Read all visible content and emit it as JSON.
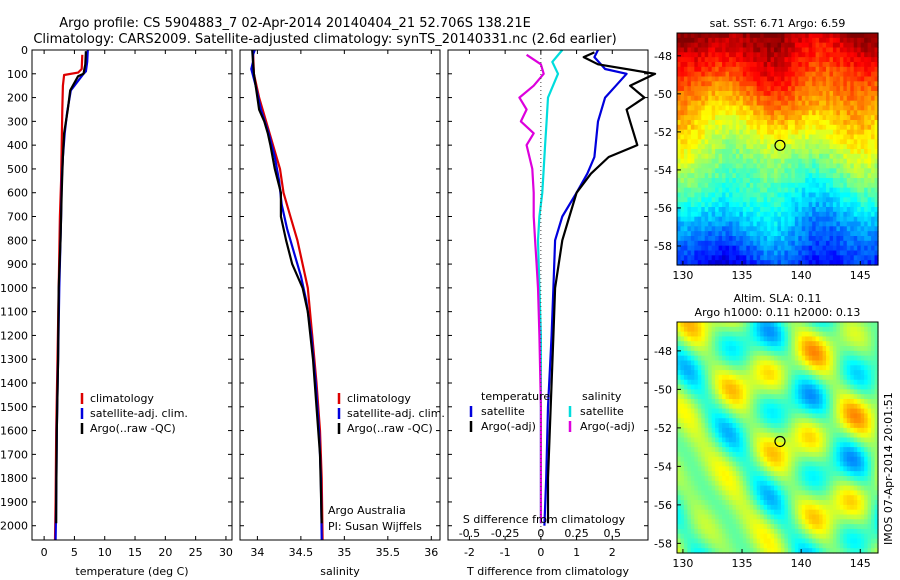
{
  "figure": {
    "title_line1": "Argo profile: CS 5904883_7 02-Apr-2014 20140404_21 52.706S 138.21E",
    "title_line2": "Climatology: CARS2009. Satellite-adjusted climatology: synTS_20140331.nc (2.6d earlier)",
    "watermark": "IMOS 07-Apr-2014 20:01:51",
    "credit_line1": "Argo Australia",
    "credit_line2": "PI: Susan Wijffels"
  },
  "chart_data": [
    {
      "type": "line",
      "id": "temperature",
      "xlabel": "temperature (deg C)",
      "xlim": [
        -2,
        31
      ],
      "xticks": [
        0,
        5,
        10,
        15,
        20,
        25,
        30
      ],
      "ylim": [
        2060,
        0
      ],
      "yticks": [
        0,
        100,
        200,
        300,
        400,
        500,
        600,
        700,
        800,
        900,
        1000,
        1100,
        1200,
        1300,
        1400,
        1500,
        1600,
        1700,
        1800,
        1900,
        2000
      ],
      "legend": {
        "position": "lower-center",
        "entries": [
          "climatology",
          "satellite-adj. clim.",
          "Argo(..raw -QC)"
        ]
      },
      "series": [
        {
          "name": "climatology",
          "color": "#dd0000",
          "points": [
            [
              6.3,
              20
            ],
            [
              6.2,
              80
            ],
            [
              5.6,
              95
            ],
            [
              3.3,
              105
            ],
            [
              3.1,
              150
            ],
            [
              3.0,
              250
            ],
            [
              2.9,
              400
            ],
            [
              2.8,
              550
            ],
            [
              2.6,
              700
            ],
            [
              2.4,
              1000
            ],
            [
              2.2,
              1300
            ],
            [
              2.0,
              1600
            ],
            [
              1.9,
              1900
            ],
            [
              1.8,
              2060
            ]
          ]
        },
        {
          "name": "satellite-adj. clim.",
          "color": "#0000dd",
          "points": [
            [
              7.2,
              0
            ],
            [
              7.1,
              50
            ],
            [
              6.9,
              90
            ],
            [
              6.5,
              100
            ],
            [
              4.4,
              170
            ],
            [
              3.8,
              260
            ],
            [
              3.4,
              350
            ],
            [
              3.1,
              450
            ],
            [
              2.9,
              550
            ],
            [
              2.8,
              700
            ],
            [
              2.5,
              1000
            ],
            [
              2.3,
              1300
            ],
            [
              2.1,
              1600
            ],
            [
              2.0,
              1900
            ],
            [
              1.9,
              2060
            ]
          ]
        },
        {
          "name": "Argo(..raw -QC)",
          "color": "#000000",
          "points": [
            [
              6.9,
              5
            ],
            [
              6.8,
              60
            ],
            [
              6.5,
              100
            ],
            [
              5.6,
              110
            ],
            [
              4.3,
              170
            ],
            [
              3.9,
              250
            ],
            [
              3.3,
              350
            ],
            [
              3.1,
              450
            ],
            [
              3.0,
              520
            ],
            [
              2.9,
              600
            ],
            [
              2.7,
              800
            ],
            [
              2.4,
              1000
            ],
            [
              2.3,
              1300
            ],
            [
              2.1,
              1600
            ],
            [
              2.0,
              1900
            ],
            [
              2.0,
              1990
            ]
          ]
        }
      ]
    },
    {
      "type": "line",
      "id": "salinity",
      "xlabel": "salinity",
      "xlim": [
        33.8,
        36.1
      ],
      "xticks": [
        34,
        34.5,
        35,
        35.5,
        36
      ],
      "ylim": [
        2060,
        0
      ],
      "legend": {
        "position": "lower-center",
        "entries": [
          "climatology",
          "satellite-adj. clim.",
          "Argo(..raw -QC)"
        ]
      },
      "series": [
        {
          "name": "climatology",
          "color": "#dd0000",
          "points": [
            [
              33.95,
              0
            ],
            [
              33.96,
              100
            ],
            [
              34.02,
              200
            ],
            [
              34.1,
              300
            ],
            [
              34.18,
              400
            ],
            [
              34.26,
              500
            ],
            [
              34.3,
              600
            ],
            [
              34.38,
              700
            ],
            [
              34.46,
              800
            ],
            [
              34.52,
              900
            ],
            [
              34.58,
              1000
            ],
            [
              34.63,
              1200
            ],
            [
              34.68,
              1400
            ],
            [
              34.72,
              1600
            ],
            [
              34.74,
              1800
            ],
            [
              34.75,
              2060
            ]
          ]
        },
        {
          "name": "satellite-adj. clim.",
          "color": "#0000dd",
          "points": [
            [
              33.97,
              0
            ],
            [
              33.95,
              20
            ],
            [
              33.95,
              50
            ],
            [
              33.93,
              80
            ],
            [
              33.98,
              150
            ],
            [
              34.04,
              250
            ],
            [
              34.13,
              350
            ],
            [
              34.2,
              450
            ],
            [
              34.25,
              550
            ],
            [
              34.28,
              650
            ],
            [
              34.34,
              750
            ],
            [
              34.42,
              850
            ],
            [
              34.5,
              950
            ],
            [
              34.56,
              1050
            ],
            [
              34.62,
              1200
            ],
            [
              34.67,
              1400
            ],
            [
              34.71,
              1600
            ],
            [
              34.73,
              1800
            ],
            [
              34.74,
              2060
            ]
          ]
        },
        {
          "name": "Argo(..raw -QC)",
          "color": "#000000",
          "points": [
            [
              33.94,
              0
            ],
            [
              33.96,
              100
            ],
            [
              34.0,
              200
            ],
            [
              34.02,
              250
            ],
            [
              34.08,
              300
            ],
            [
              34.12,
              350
            ],
            [
              34.15,
              400
            ],
            [
              34.2,
              500
            ],
            [
              34.27,
              600
            ],
            [
              34.27,
              700
            ],
            [
              34.33,
              800
            ],
            [
              34.4,
              900
            ],
            [
              34.52,
              1000
            ],
            [
              34.58,
              1100
            ],
            [
              34.64,
              1300
            ],
            [
              34.68,
              1500
            ],
            [
              34.72,
              1700
            ],
            [
              34.74,
              1990
            ]
          ]
        }
      ]
    },
    {
      "type": "line",
      "id": "difference",
      "xlabel": "T difference from climatology",
      "xlabel_top": "S difference from climatology",
      "xlim": [
        -2.6,
        3.0
      ],
      "xticks": [
        -2,
        -1,
        0,
        1,
        2
      ],
      "xticks_top": [
        -0.5,
        -0.25,
        0,
        0.25,
        0.5
      ],
      "xticks_top_labels": [
        "-0.5",
        "-0.25",
        "0",
        "0.25",
        "0.5"
      ],
      "ylim": [
        2060,
        0
      ],
      "legend": {
        "position": "lower-center",
        "groups": [
          {
            "title": "temperature",
            "entries": [
              "satellite",
              "Argo(-adj)"
            ]
          },
          {
            "title": "salinity",
            "entries": [
              "satellite",
              "Argo(-adj)"
            ]
          }
        ]
      },
      "series": [
        {
          "name": "temperature satellite",
          "color": "#0000dd",
          "points": [
            [
              1.6,
              0
            ],
            [
              1.5,
              30
            ],
            [
              1.8,
              80
            ],
            [
              2.4,
              100
            ],
            [
              2.1,
              150
            ],
            [
              1.8,
              200
            ],
            [
              1.6,
              300
            ],
            [
              1.5,
              450
            ],
            [
              1.3,
              520
            ],
            [
              1.0,
              600
            ],
            [
              0.6,
              700
            ],
            [
              0.4,
              800
            ],
            [
              0.35,
              1000
            ],
            [
              0.3,
              1200
            ],
            [
              0.2,
              1500
            ],
            [
              0.15,
              1800
            ],
            [
              0.1,
              2000
            ]
          ]
        },
        {
          "name": "temperature Argo(-adj)",
          "color": "#000000",
          "points": [
            [
              1.5,
              10
            ],
            [
              1.2,
              30
            ],
            [
              1.6,
              60
            ],
            [
              3.2,
              100
            ],
            [
              2.5,
              150
            ],
            [
              2.9,
              200
            ],
            [
              2.4,
              250
            ],
            [
              2.5,
              300
            ],
            [
              2.7,
              400
            ],
            [
              1.9,
              450
            ],
            [
              1.4,
              520
            ],
            [
              1.0,
              600
            ],
            [
              0.8,
              700
            ],
            [
              0.6,
              800
            ],
            [
              0.5,
              900
            ],
            [
              0.4,
              1000
            ],
            [
              0.35,
              1200
            ],
            [
              0.3,
              1400
            ],
            [
              0.25,
              1600
            ],
            [
              0.2,
              1800
            ],
            [
              0.2,
              1990
            ]
          ]
        },
        {
          "name": "salinity satellite",
          "color": "#00dddd",
          "points": [
            [
              0.15,
              0
            ],
            [
              0.08,
              50
            ],
            [
              0.12,
              100
            ],
            [
              0.05,
              200
            ],
            [
              0.04,
              300
            ],
            [
              0.03,
              400
            ],
            [
              0.02,
              500
            ],
            [
              0.01,
              600
            ],
            [
              -0.01,
              700
            ],
            [
              -0.02,
              800
            ],
            [
              -0.01,
              1000
            ],
            [
              0.0,
              1200
            ],
            [
              0.0,
              1500
            ],
            [
              0.0,
              1800
            ],
            [
              0.0,
              1990
            ]
          ]
        },
        {
          "name": "salinity Argo(-adj)",
          "color": "#dd00dd",
          "points": [
            [
              -0.1,
              20
            ],
            [
              0.0,
              60
            ],
            [
              0.02,
              100
            ],
            [
              -0.05,
              150
            ],
            [
              -0.15,
              200
            ],
            [
              -0.1,
              250
            ],
            [
              -0.14,
              300
            ],
            [
              -0.05,
              350
            ],
            [
              -0.1,
              400
            ],
            [
              -0.06,
              500
            ],
            [
              -0.05,
              600
            ],
            [
              -0.05,
              700
            ],
            [
              -0.04,
              800
            ],
            [
              -0.03,
              900
            ],
            [
              -0.02,
              1000
            ],
            [
              -0.01,
              1200
            ],
            [
              0.0,
              1500
            ],
            [
              0.0,
              1800
            ],
            [
              0.0,
              1990
            ]
          ]
        }
      ]
    },
    {
      "type": "heatmap",
      "id": "sst-map",
      "title": "sat. SST: 6.71  Argo: 6.59",
      "xlim": [
        129.5,
        146.5
      ],
      "ylim": [
        -59,
        -46.8
      ],
      "xticks": [
        130,
        135,
        140,
        145
      ],
      "yticks": [
        -48,
        -50,
        -52,
        -54,
        -56,
        -58
      ],
      "marker": {
        "lon": 138.21,
        "lat": -52.706
      },
      "colormap": "jet"
    },
    {
      "type": "heatmap",
      "id": "sla-map",
      "title_line1": "Altim. SLA: 0.11",
      "title_line2": "Argo h1000: 0.11 h2000: 0.13",
      "xlim": [
        129.5,
        146.5
      ],
      "ylim": [
        -58.5,
        -46.5
      ],
      "xticks": [
        130,
        135,
        140,
        145
      ],
      "yticks": [
        -48,
        -50,
        -52,
        -54,
        -56,
        -58
      ],
      "marker": {
        "lon": 138.21,
        "lat": -52.706
      },
      "colormap": "jet"
    }
  ]
}
